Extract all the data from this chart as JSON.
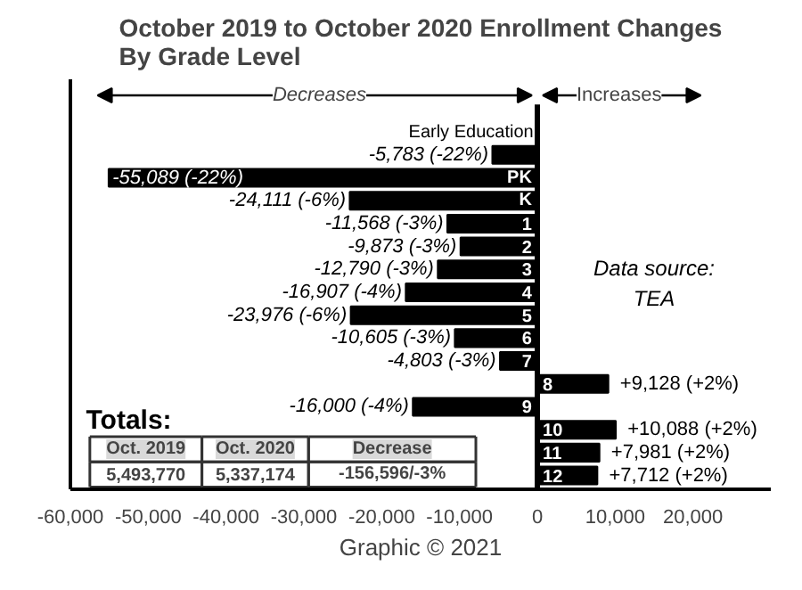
{
  "chart_data": {
    "type": "bar",
    "orientation": "horizontal",
    "title": "October 2019 to October 2020 Enrollment Changes\nBy Grade Level",
    "categories": [
      "Early Education",
      "PK",
      "K",
      "1",
      "2",
      "3",
      "4",
      "5",
      "6",
      "7",
      "8",
      "9",
      "10",
      "11",
      "12"
    ],
    "values": [
      -5783,
      -55089,
      -24111,
      -11568,
      -9873,
      -12790,
      -16907,
      -23976,
      -10605,
      -4803,
      9128,
      -16000,
      10088,
      7981,
      7712
    ],
    "value_labels": [
      "-5,783 (-22%)",
      "-55,089 (-22%)",
      "-24,111 (-6%)",
      "-11,568 (-3%)",
      "-9,873 (-3%)",
      "-12,790 (-3%)",
      "-16,907 (-4%)",
      "-23,976 (-6%)",
      "-10,605 (-3%)",
      "-4,803 (-3%)",
      "+9,128 (+2%)",
      "-16,000 (-4%)",
      "+10,088 (+2%)",
      "+7,981 (+2%)",
      "+7,712 (+2%)"
    ],
    "color": "#000000",
    "xlim": [
      -60000,
      30000
    ],
    "xticks": [
      {
        "value": -60000,
        "label": "-60,000"
      },
      {
        "value": -50000,
        "label": "-50,000"
      },
      {
        "value": -40000,
        "label": "-40,000"
      },
      {
        "value": -30000,
        "label": "-30,000"
      },
      {
        "value": -20000,
        "label": "-20,000"
      },
      {
        "value": -10000,
        "label": "-10,000"
      },
      0,
      {
        "value": 10000,
        "label": "10,000"
      },
      {
        "value": 20000,
        "label": "20,000"
      }
    ],
    "tick_labels": "x",
    "grid": false,
    "annotations": [
      "Decreases",
      "Increases",
      "Data source:\nTEA",
      "Totals:",
      "Oct. 2019",
      "Oct. 2020",
      "Decrease",
      "5,493,770",
      "5,337,174",
      "-156,596/-3%",
      "Graphic © 2021"
    ]
  }
}
